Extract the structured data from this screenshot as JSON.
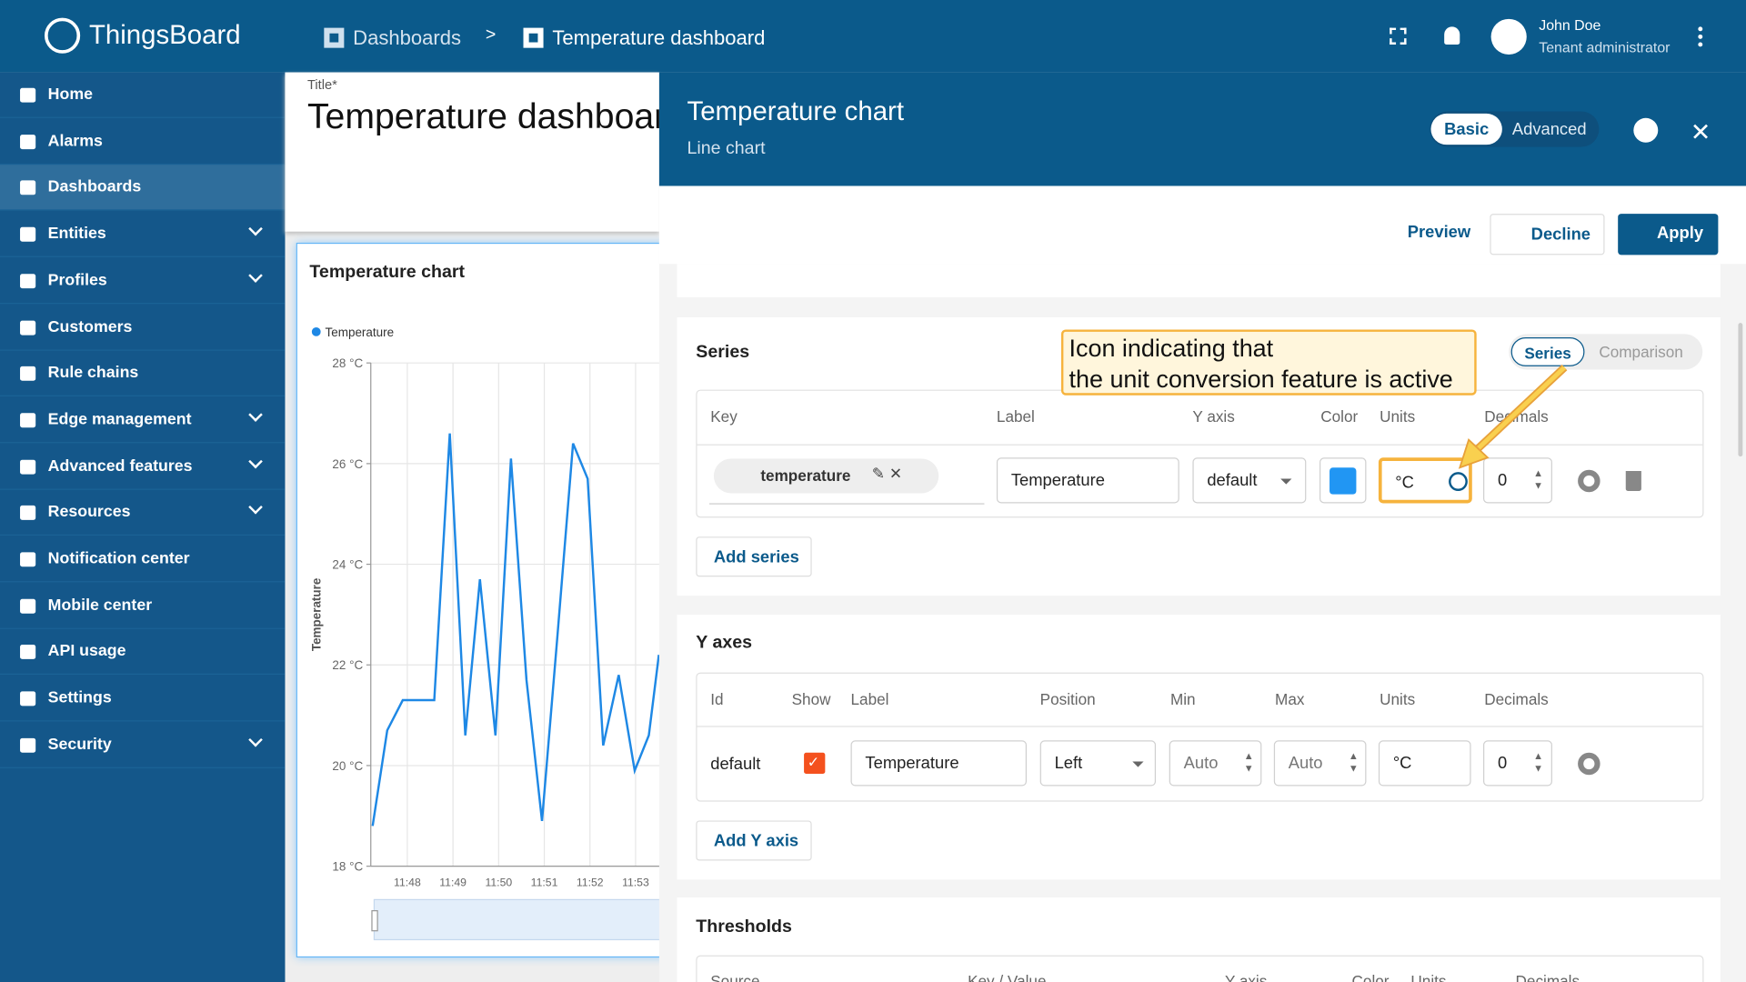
{
  "header": {
    "logo": "ThingsBoard",
    "breadcrumb": [
      "Dashboards",
      ">",
      "Temperature dashboard"
    ],
    "user_name": "John Doe",
    "user_role": "Tenant administrator"
  },
  "sidebar": {
    "items": [
      {
        "label": "Home"
      },
      {
        "label": "Alarms"
      },
      {
        "label": "Dashboards",
        "active": true
      },
      {
        "label": "Entities",
        "expandable": true
      },
      {
        "label": "Profiles",
        "expandable": true
      },
      {
        "label": "Customers"
      },
      {
        "label": "Rule chains"
      },
      {
        "label": "Edge management",
        "expandable": true
      },
      {
        "label": "Advanced features",
        "expandable": true
      },
      {
        "label": "Resources",
        "expandable": true
      },
      {
        "label": "Notification center"
      },
      {
        "label": "Mobile center"
      },
      {
        "label": "API usage"
      },
      {
        "label": "Settings"
      },
      {
        "label": "Security",
        "expandable": true
      }
    ]
  },
  "dashboard": {
    "title_label": "Title*",
    "title": "Temperature dashboard",
    "widget_title": "Temperature chart"
  },
  "chart_data": {
    "type": "line",
    "y_label": "Temperature",
    "x": [
      707.24,
      707.56,
      707.9,
      708.22,
      708.59,
      708.93,
      709.27,
      709.59,
      709.93,
      710.27,
      710.61,
      710.95,
      711.29,
      711.63,
      711.95,
      712.29,
      712.63,
      712.98,
      713.29,
      713.51
    ],
    "series": [
      {
        "name": "Temperature",
        "color": "#1e88e5",
        "values": [
          18.8,
          20.7,
          21.3,
          21.3,
          21.3,
          26.6,
          20.6,
          23.7,
          20.6,
          26.1,
          21.7,
          18.9,
          22.6,
          26.4,
          25.7,
          20.4,
          21.8,
          19.9,
          20.6,
          22.2
        ]
      }
    ],
    "xlim": [
      707.2,
      714.6
    ],
    "xticks": [
      {
        "value": 708,
        "label": "11:48"
      },
      {
        "value": 709,
        "label": "11:49"
      },
      {
        "value": 710,
        "label": "11:50"
      },
      {
        "value": 711,
        "label": "11:51"
      },
      {
        "value": 712,
        "label": "11:52"
      },
      {
        "value": 713,
        "label": "11:53"
      }
    ],
    "ylim": [
      18,
      28
    ],
    "yticks": [
      {
        "value": 18,
        "label": "18 °C"
      },
      {
        "value": 20,
        "label": "20 °C"
      },
      {
        "value": 22,
        "label": "22 °C"
      },
      {
        "value": 24,
        "label": "24 °C"
      },
      {
        "value": 26,
        "label": "26 °C"
      },
      {
        "value": 28,
        "label": "28 °C"
      }
    ],
    "grid": true,
    "legend": "top-left"
  },
  "panel": {
    "title": "Temperature chart",
    "subtitle": "Line chart",
    "tabs": [
      "Basic",
      "Advanced"
    ],
    "active_tab": 0,
    "actions": [
      "Preview",
      "Decline",
      "Apply"
    ]
  },
  "series_section": {
    "title": "Series",
    "toggle": [
      "Series",
      "Comparison"
    ],
    "columns": [
      "Key",
      "Label",
      "Y axis",
      "Color",
      "Units",
      "Decimals"
    ],
    "row": {
      "key": "temperature",
      "label": "Temperature",
      "y_axis": "default",
      "color": "#2196f3",
      "units": "°C",
      "decimals": 0
    },
    "add": "Add series"
  },
  "annotation": [
    "Icon indicating that",
    "the unit conversion feature is active"
  ],
  "y_axes_section": {
    "title": "Y axes",
    "columns": [
      "Id",
      "Show",
      "Label",
      "Position",
      "Min",
      "Max",
      "Units",
      "Decimals"
    ],
    "row": {
      "id": "default",
      "show": true,
      "label": "Temperature",
      "position": "Left",
      "min": "Auto",
      "max": "Auto",
      "units": "°C",
      "decimals": 0
    },
    "add": "Add Y axis"
  },
  "thresholds_section": {
    "title": "Thresholds",
    "columns": [
      "Source",
      "Key / Value",
      "Y axis",
      "Color",
      "Units",
      "Decimals"
    ]
  }
}
